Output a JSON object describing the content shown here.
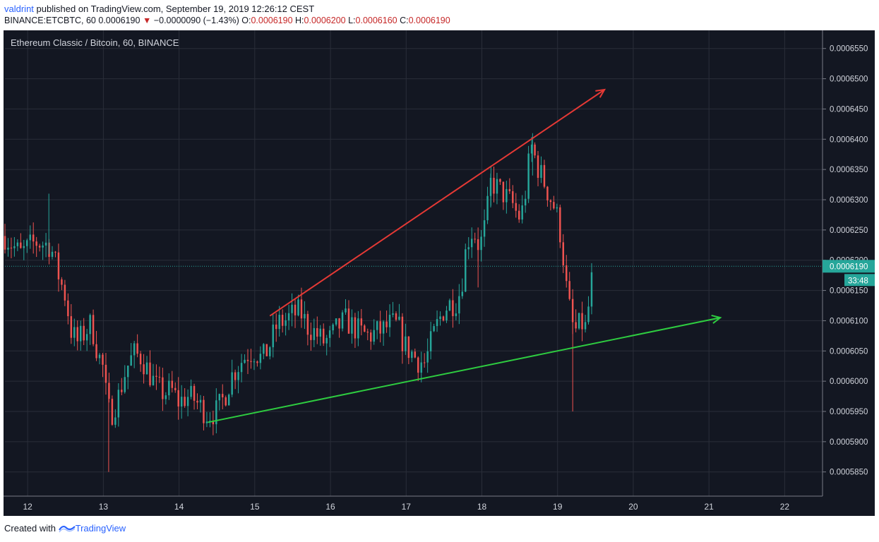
{
  "header": {
    "author": "valdrint",
    "published_text": "published on TradingView.com, September 19, 2019 12:26:12 CEST",
    "symbol": "BINANCE:ETCBTC, 60",
    "last": "0.0006190",
    "change_arrow": "▼",
    "change": "−0.0000090 (−1.43%)",
    "o_label": "O:",
    "o_value": "0.0006190",
    "h_label": "H:",
    "h_value": "0.0006200",
    "l_label": "L:",
    "l_value": "0.0006160",
    "c_label": "C:",
    "c_value": "0.0006190"
  },
  "footer": {
    "created_with": "Created with",
    "brand": "TradingView"
  },
  "colors": {
    "background": "#131722",
    "up": "#26a69a",
    "down": "#ef5350",
    "grid": "#2a2e39",
    "resistance": "#e53935",
    "support": "#2ecc40",
    "price_line": "#26a69a"
  },
  "chart_data": {
    "type": "candlestick",
    "title": "Ethereum Classic / Bitcoin, 60, BINANCE",
    "x_ticks": [
      "12",
      "13",
      "14",
      "15",
      "16",
      "17",
      "18",
      "19",
      "20",
      "21",
      "22"
    ],
    "y_ticks": [
      "0.0006550",
      "0.0006500",
      "0.0006450",
      "0.0006400",
      "0.0006350",
      "0.0006300",
      "0.0006250",
      "0.0006200",
      "0.0006150",
      "0.0006100",
      "0.0006050",
      "0.0006000",
      "0.0005950",
      "0.0005900",
      "0.0005850"
    ],
    "ylim": [
      0.000581,
      0.000658
    ],
    "xlim_days": [
      11.7,
      22.5
    ],
    "current_price": "0.0006190",
    "countdown": "33:48",
    "grid": true,
    "candle_path": [
      [
        11.7,
        0.000624
      ],
      [
        11.9,
        0.000621
      ],
      [
        12.1,
        0.000623
      ],
      [
        12.3,
        0.0006225
      ],
      [
        12.42,
        0.000617
      ],
      [
        12.5,
        0.000614
      ],
      [
        12.58,
        0.000608
      ],
      [
        12.66,
        0.0006065
      ],
      [
        12.75,
        0.000608
      ],
      [
        12.84,
        0.0006095
      ],
      [
        12.93,
        0.0006045
      ],
      [
        13.0,
        0.000602
      ],
      [
        13.05,
        0.000596
      ],
      [
        13.1,
        0.0005945
      ],
      [
        13.2,
        0.0005975
      ],
      [
        13.3,
        0.000602
      ],
      [
        13.4,
        0.0006045
      ],
      [
        13.5,
        0.000604
      ],
      [
        13.6,
        0.0006015
      ],
      [
        13.7,
        0.000599
      ],
      [
        13.8,
        0.000598
      ],
      [
        13.9,
        0.0005985
      ],
      [
        14.0,
        0.0005965
      ],
      [
        14.1,
        0.0005975
      ],
      [
        14.2,
        0.000597
      ],
      [
        14.3,
        0.0005955
      ],
      [
        14.38,
        0.0005945
      ],
      [
        14.5,
        0.000595
      ],
      [
        14.6,
        0.0005975
      ],
      [
        14.7,
        0.000601
      ],
      [
        14.8,
        0.000603
      ],
      [
        14.9,
        0.0006045
      ],
      [
        15.0,
        0.000605
      ],
      [
        15.1,
        0.0006035
      ],
      [
        15.2,
        0.000606
      ],
      [
        15.3,
        0.0006095
      ],
      [
        15.4,
        0.00061
      ],
      [
        15.5,
        0.000611
      ],
      [
        15.6,
        0.0006115
      ],
      [
        15.7,
        0.000609
      ],
      [
        15.8,
        0.000608
      ],
      [
        15.9,
        0.0006065
      ],
      [
        16.0,
        0.000607
      ],
      [
        16.1,
        0.000609
      ],
      [
        16.2,
        0.00061
      ],
      [
        16.3,
        0.000609
      ],
      [
        16.4,
        0.000608
      ],
      [
        16.5,
        0.0006075
      ],
      [
        16.6,
        0.000608
      ],
      [
        16.7,
        0.0006085
      ],
      [
        16.8,
        0.0006095
      ],
      [
        16.9,
        0.000609
      ],
      [
        16.97,
        0.000606
      ],
      [
        17.05,
        0.000605
      ],
      [
        17.15,
        0.0006035
      ],
      [
        17.25,
        0.000603
      ],
      [
        17.32,
        0.000606
      ],
      [
        17.4,
        0.000609
      ],
      [
        17.5,
        0.000612
      ],
      [
        17.6,
        0.000613
      ],
      [
        17.65,
        0.000613
      ],
      [
        17.7,
        0.0006145
      ],
      [
        17.75,
        0.0006175
      ],
      [
        17.8,
        0.000623
      ],
      [
        17.88,
        0.000625
      ],
      [
        17.92,
        0.000624
      ],
      [
        17.97,
        0.000622
      ],
      [
        18.05,
        0.000626
      ],
      [
        18.12,
        0.000633
      ],
      [
        18.2,
        0.000632
      ],
      [
        18.28,
        0.000631
      ],
      [
        18.35,
        0.00063
      ],
      [
        18.42,
        0.000629
      ],
      [
        18.48,
        0.000627
      ],
      [
        18.55,
        0.0006285
      ],
      [
        18.6,
        0.000634
      ],
      [
        18.65,
        0.000639
      ],
      [
        18.7,
        0.000637
      ],
      [
        18.75,
        0.000635
      ],
      [
        18.82,
        0.000633
      ],
      [
        18.88,
        0.000631
      ],
      [
        18.95,
        0.000629
      ],
      [
        19.02,
        0.000626
      ],
      [
        19.08,
        0.00062
      ],
      [
        19.12,
        0.000615
      ],
      [
        19.17,
        0.000611
      ],
      [
        19.22,
        0.000608
      ],
      [
        19.28,
        0.000609
      ],
      [
        19.33,
        0.0006095
      ],
      [
        19.38,
        0.0006085
      ],
      [
        19.43,
        0.000615
      ],
      [
        19.48,
        0.000619
      ]
    ],
    "annotations": {
      "resistance_arrow": {
        "from": [
          15.2,
          0.0006108
        ],
        "to": [
          19.62,
          0.0006482
        ]
      },
      "support_arrow": {
        "from": [
          14.38,
          0.0005932
        ],
        "to": [
          21.15,
          0.0006105
        ]
      }
    }
  }
}
